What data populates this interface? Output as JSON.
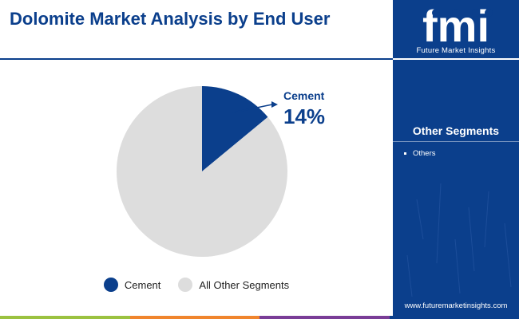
{
  "title": "Dolomite Market Analysis by End User",
  "colors": {
    "brand_blue": "#0b3f8c",
    "other_gray": "#dddddd",
    "bar_green": "#9bc240",
    "bar_orange": "#f0852d",
    "bar_purple": "#7a3d97",
    "bar_blue": "#0b3f8c"
  },
  "chart_data": {
    "type": "pie",
    "title": "Dolomite Market Analysis by End User",
    "slices": [
      {
        "label": "Cement",
        "value": 14,
        "color": "#0b3f8c",
        "data_label": "14%"
      },
      {
        "label": "All Other Segments",
        "value": 86,
        "color": "#dddddd"
      }
    ],
    "callout": {
      "label": "Cement",
      "value_text": "14%"
    },
    "legend": {
      "placement": "bottom",
      "entries": [
        "Cement",
        "All Other Segments"
      ]
    }
  },
  "sidebar": {
    "logo_text": "fmi",
    "logo_tagline": "Future Market Insights",
    "segments_title": "Other Segments",
    "segments": [
      "Others"
    ],
    "website": "www.futuremarketinsights.com"
  }
}
